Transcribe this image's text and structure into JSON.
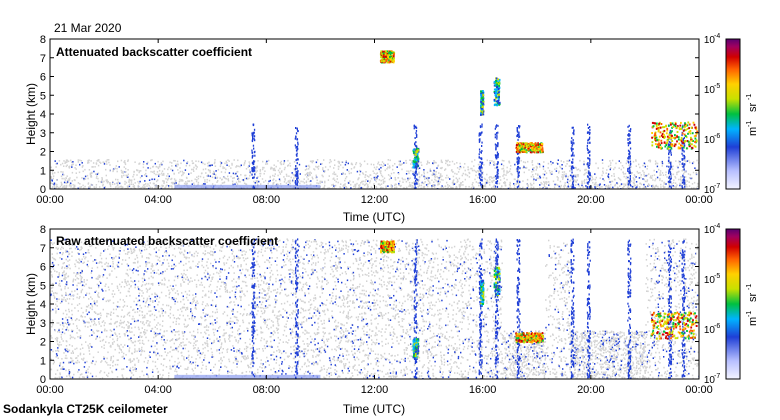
{
  "date_label": "21 Mar 2020",
  "footer": "Sodankyla CT25K ceilometer",
  "colors": {
    "gray": "#d3d3d3",
    "blue": "#1f3fd6",
    "light_blue": "#8c9cf0"
  },
  "chart_data": [
    {
      "type": "heatmap",
      "title": "Attenuated backscatter coefficient",
      "xlabel": "Time (UTC)",
      "ylabel": "Height (km)",
      "xticks": [
        "00:00",
        "04:00",
        "08:00",
        "12:00",
        "16:00",
        "20:00",
        "00:00"
      ],
      "xlim": [
        0,
        24
      ],
      "ylim": [
        0,
        8
      ],
      "yticks": [
        "0",
        "1",
        "2",
        "3",
        "4",
        "5",
        "6",
        "7",
        "8"
      ],
      "colorbar": {
        "scale": "log",
        "range": [
          1e-07,
          0.0001
        ],
        "ticks": [
          "10",
          "10",
          "10",
          "10"
        ],
        "exponents": [
          "-4",
          "-5",
          "-6",
          "-7"
        ],
        "unit_base": [
          "m",
          "sr"
        ],
        "unit_exp": [
          "-1",
          "-1"
        ]
      },
      "features": [
        {
          "x": [
            12.2,
            12.7
          ],
          "y": [
            6.8,
            7.4
          ],
          "level": "high"
        },
        {
          "x": [
            15.9,
            16.0
          ],
          "y": [
            4.0,
            5.3
          ],
          "level": "mid"
        },
        {
          "x": [
            16.4,
            16.6
          ],
          "y": [
            4.5,
            6.0
          ],
          "level": "mid"
        },
        {
          "x": [
            13.4,
            13.6
          ],
          "y": [
            1.2,
            2.2
          ],
          "level": "mid"
        },
        {
          "x": [
            17.2,
            18.2
          ],
          "y": [
            2.0,
            2.5
          ],
          "level": "high"
        },
        {
          "x": [
            22.2,
            23.9
          ],
          "y": [
            2.2,
            3.6
          ],
          "level": "high"
        }
      ]
    },
    {
      "type": "heatmap",
      "title": "Raw attenuated backscatter coefficient",
      "xlabel": "Time (UTC)",
      "ylabel": "Height (km)",
      "xticks": [
        "00:00",
        "04:00",
        "08:00",
        "12:00",
        "16:00",
        "20:00",
        "00:00"
      ],
      "xlim": [
        0,
        24
      ],
      "ylim": [
        0,
        8
      ],
      "yticks": [
        "0",
        "1",
        "2",
        "3",
        "4",
        "5",
        "6",
        "7",
        "8"
      ],
      "colorbar": {
        "scale": "log",
        "range": [
          1e-07,
          0.0001
        ],
        "ticks": [
          "10",
          "10",
          "10",
          "10"
        ],
        "exponents": [
          "-4",
          "-5",
          "-6",
          "-7"
        ],
        "unit_base": [
          "m",
          "sr"
        ],
        "unit_exp": [
          "-1",
          "-1"
        ]
      },
      "features": [
        {
          "x": [
            12.2,
            12.7
          ],
          "y": [
            6.8,
            7.4
          ],
          "level": "high"
        },
        {
          "x": [
            15.9,
            16.0
          ],
          "y": [
            4.0,
            5.3
          ],
          "level": "mid"
        },
        {
          "x": [
            16.4,
            16.6
          ],
          "y": [
            4.5,
            6.0
          ],
          "level": "mid"
        },
        {
          "x": [
            13.4,
            13.6
          ],
          "y": [
            1.2,
            2.2
          ],
          "level": "mid"
        },
        {
          "x": [
            17.2,
            18.2
          ],
          "y": [
            2.0,
            2.5
          ],
          "level": "high"
        },
        {
          "x": [
            22.2,
            23.9
          ],
          "y": [
            2.2,
            3.6
          ],
          "level": "high"
        }
      ]
    }
  ]
}
